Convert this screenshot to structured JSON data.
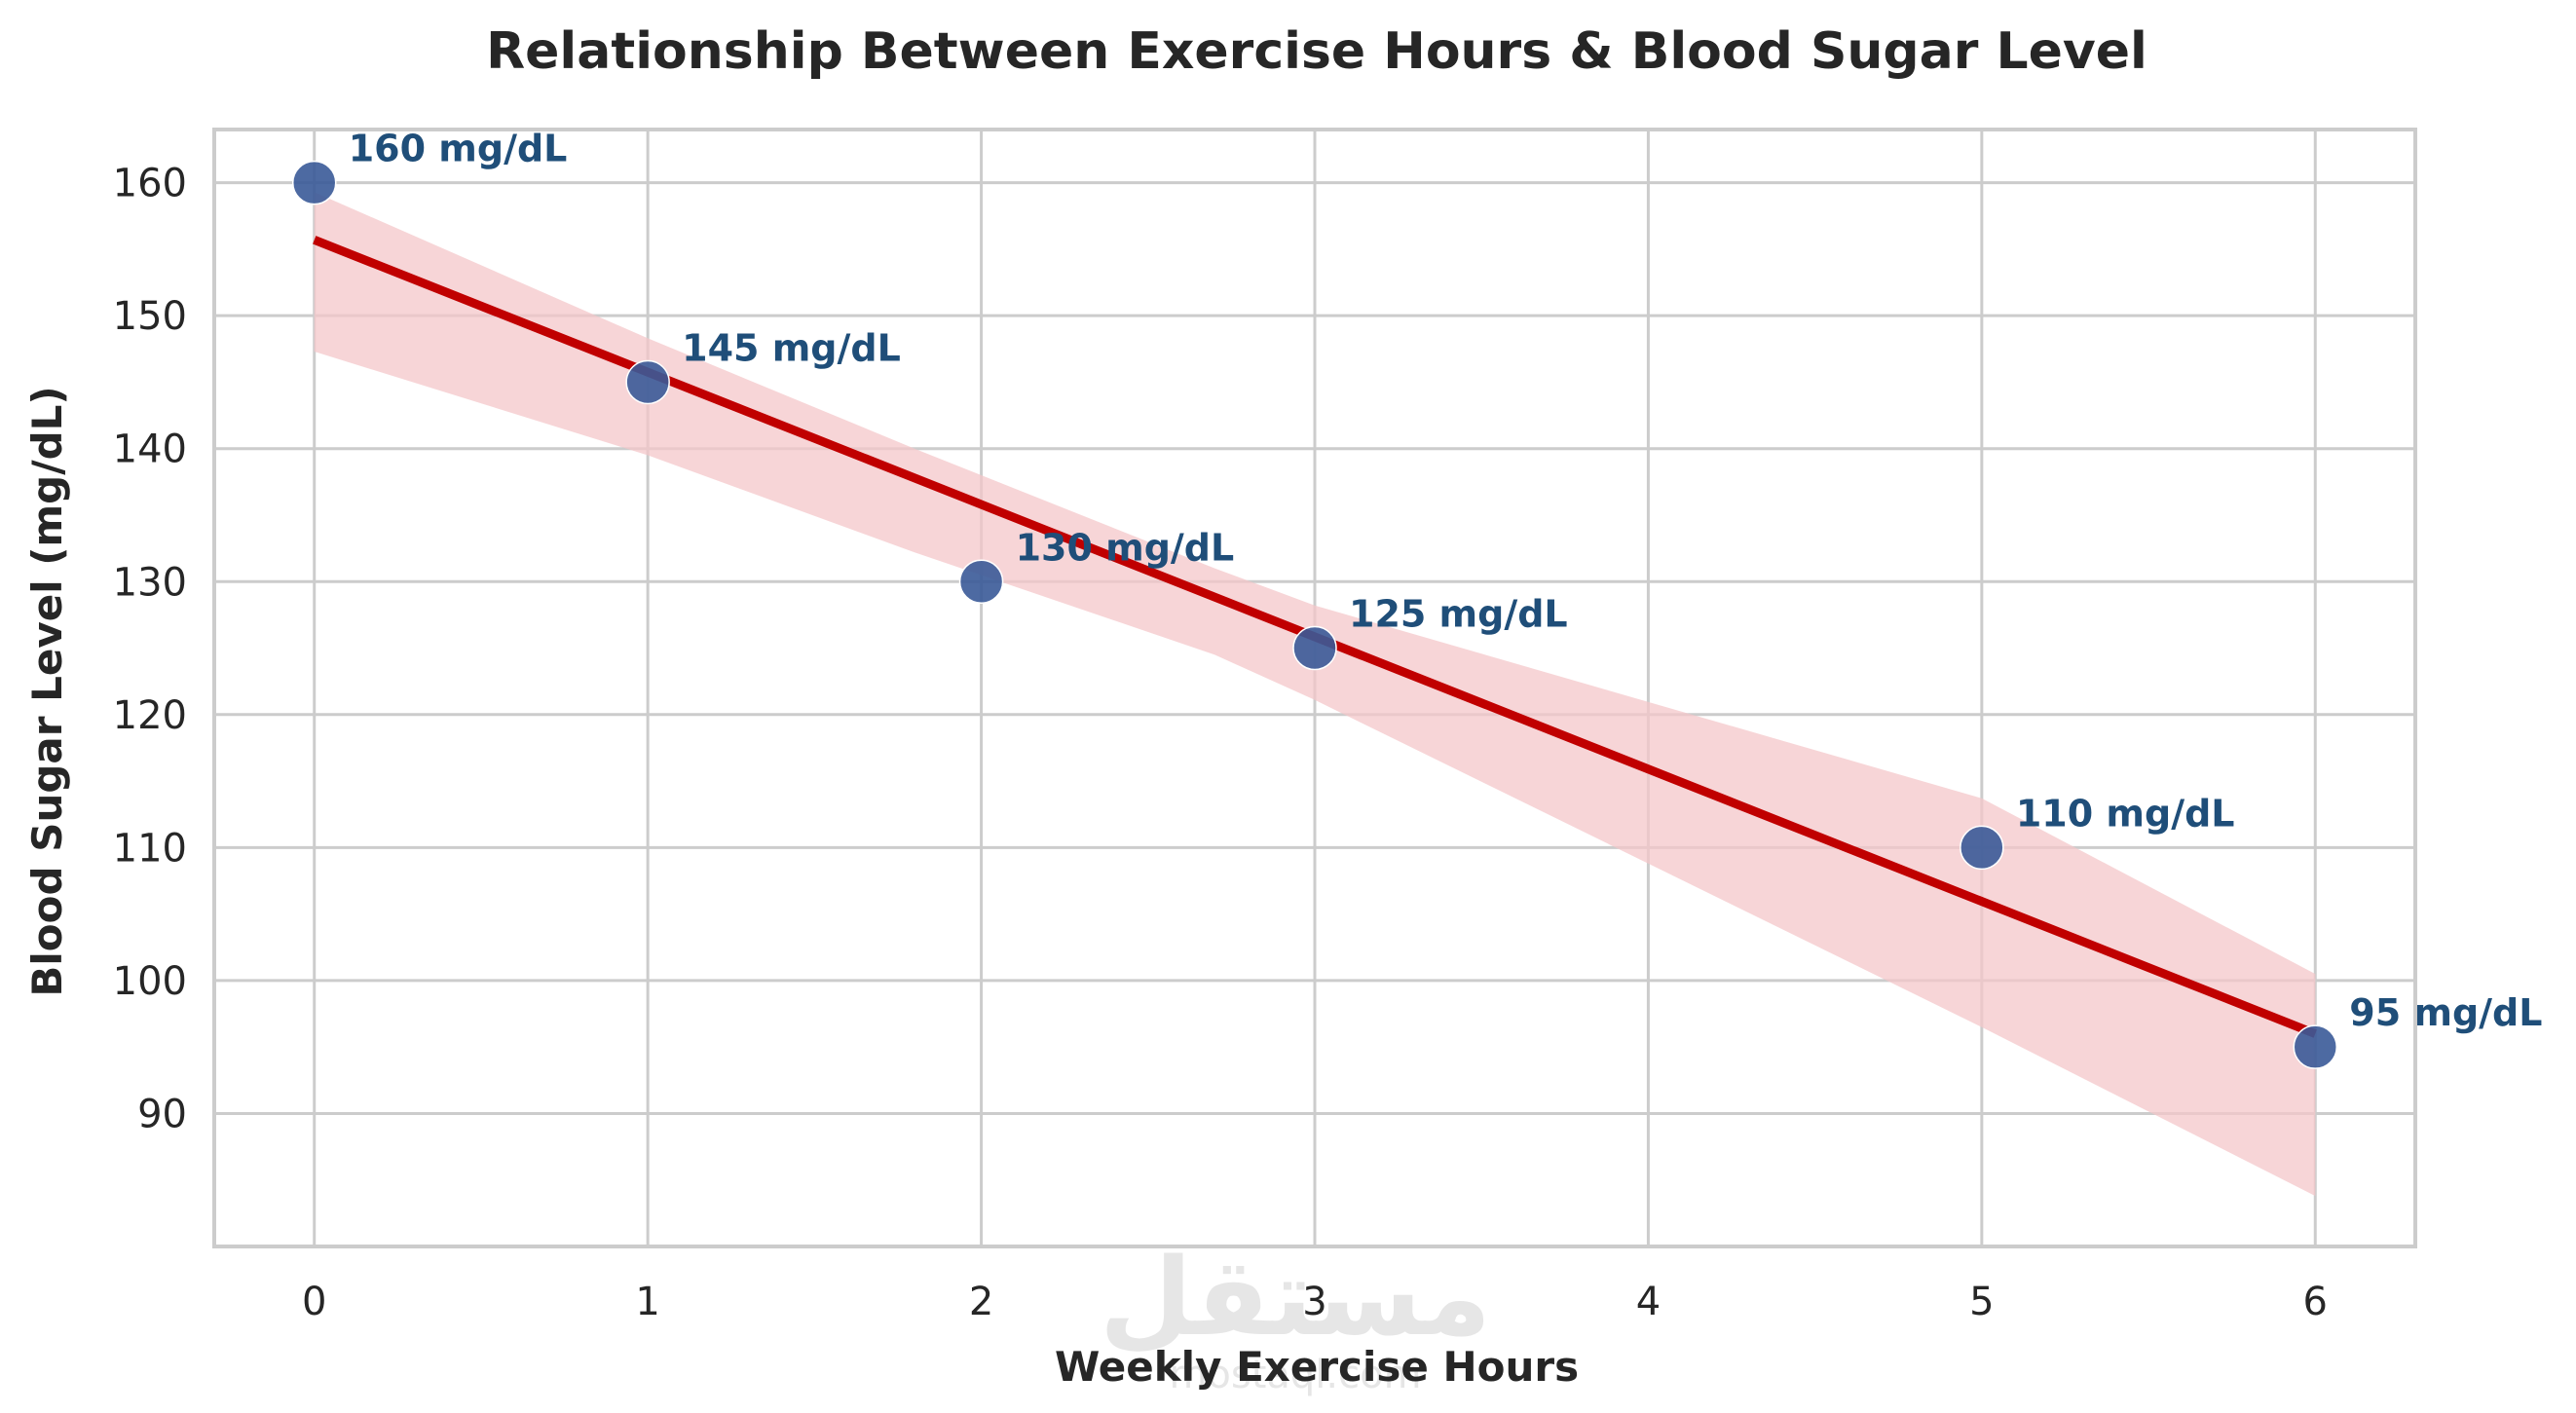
{
  "chart_data": {
    "type": "scatter",
    "title": "Relationship Between Exercise Hours & Blood Sugar Level",
    "xlabel": "Weekly Exercise Hours",
    "ylabel": "Blood Sugar Level (mg/dL)",
    "xlim": [
      -0.3,
      6.3
    ],
    "ylim": [
      80,
      164
    ],
    "x_ticks": [
      "0",
      "1",
      "2",
      "3",
      "4",
      "5",
      "6"
    ],
    "y_ticks": [
      "90",
      "100",
      "110",
      "120",
      "130",
      "140",
      "150",
      "160"
    ],
    "grid": true,
    "points": [
      {
        "x": 0,
        "y": 160,
        "label": "160 mg/dL"
      },
      {
        "x": 1,
        "y": 145,
        "label": "145 mg/dL"
      },
      {
        "x": 2,
        "y": 130,
        "label": "130 mg/dL"
      },
      {
        "x": 3,
        "y": 125,
        "label": "125 mg/dL"
      },
      {
        "x": 5,
        "y": 110,
        "label": "110 mg/dL"
      },
      {
        "x": 6,
        "y": 95,
        "label": "95 mg/dL"
      }
    ],
    "regression": {
      "x": [
        0,
        6
      ],
      "y": [
        155.7,
        96.0
      ]
    },
    "confidence_band": {
      "x": [
        0,
        1,
        1.8,
        2.7,
        3,
        5,
        6
      ],
      "upper": [
        159.3,
        148.3,
        140,
        131,
        128.2,
        113.7,
        100.5
      ],
      "lower": [
        147.3,
        139.5,
        132.2,
        124.5,
        121.1,
        96.5,
        83.8
      ]
    },
    "colors": {
      "points": "#3a5a98",
      "point_labels": "#1f4e79",
      "line": "#c00000",
      "band": "#f4c7c9"
    }
  },
  "watermark": {
    "text": "مستقل",
    "subtext": "mostaql.com"
  }
}
